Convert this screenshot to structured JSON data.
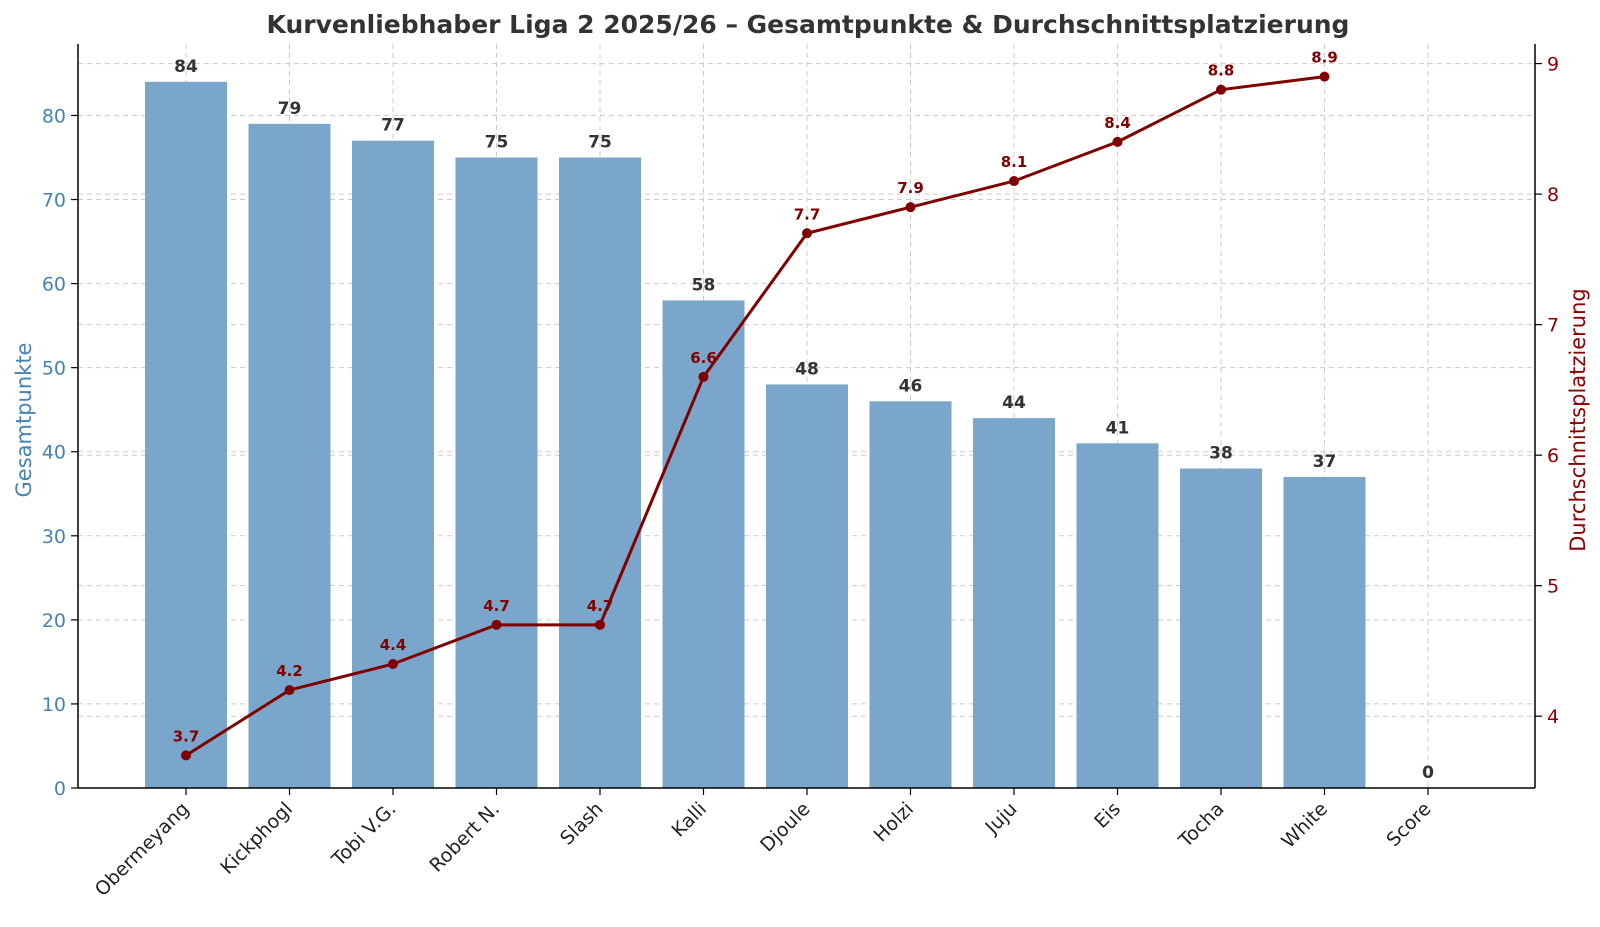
{
  "chart_data": {
    "type": "bar",
    "title": "Kurvenliebhaber Liga 2 2025/26 – Gesamtpunkte & Durchschnittsplatzierung",
    "xlabel": "",
    "ylabel": "Gesamtpunkte",
    "y2label": "Durchschnittsplatzierung",
    "categories": [
      "Obermeyang",
      "Kickphogl",
      "Tobi V.G.",
      "Robert N.",
      "Slash",
      "Kalli",
      "Djoule",
      "Holzi",
      "Juju",
      "Eis",
      "Tocha",
      "White",
      "Score"
    ],
    "ylim": [
      0,
      88.5
    ],
    "y2lim": [
      3.45,
      9.15
    ],
    "yticks": [
      "0",
      "10",
      "20",
      "30",
      "40",
      "50",
      "60",
      "70",
      "80"
    ],
    "y2ticks": [
      "4",
      "5",
      "6",
      "7",
      "8",
      "9"
    ],
    "grid": true,
    "series": [
      {
        "name": "Gesamtpunkte",
        "type": "bar",
        "axis": "left",
        "values": [
          84,
          79,
          77,
          75,
          75,
          58,
          48,
          46,
          44,
          41,
          38,
          37,
          0
        ],
        "labels": [
          "84",
          "79",
          "77",
          "75",
          "75",
          "58",
          "48",
          "46",
          "44",
          "41",
          "38",
          "37",
          "0"
        ]
      },
      {
        "name": "Durchschnittsplatzierung",
        "type": "line",
        "axis": "right",
        "values": [
          3.7,
          4.2,
          4.4,
          4.7,
          4.7,
          6.6,
          7.7,
          7.9,
          8.1,
          8.4,
          8.8,
          8.9,
          null
        ],
        "labels": [
          "3.7",
          "4.2",
          "4.4",
          "4.7",
          "4.7",
          "6.6",
          "7.7",
          "7.9",
          "8.1",
          "8.4",
          "8.8",
          "8.9",
          ""
        ]
      }
    ],
    "colors": {
      "bar": "#7BA6CB",
      "line": "#800000",
      "left_axis": "#4682B4",
      "right_axis": "#8B0000",
      "grid": "#cccccc",
      "text": "#333333"
    }
  }
}
